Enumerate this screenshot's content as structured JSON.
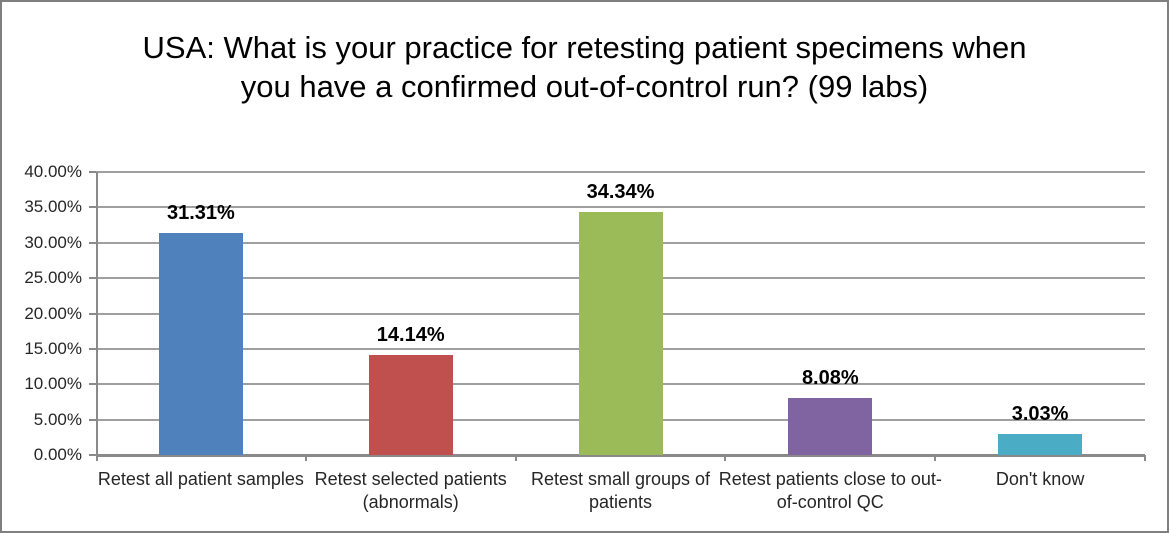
{
  "window": {
    "background": "#ffffff",
    "border_color": "#7f7f7f"
  },
  "chart_data": {
    "type": "bar",
    "title": "USA: What is your practice for retesting patient specimens when you have a confirmed out-of-control run? (99 labs)",
    "categories": [
      "Retest all patient samples",
      "Retest selected patients (abnormals)",
      "Retest small groups of patients",
      "Retest patients close to out-of-control QC",
      "Don't know"
    ],
    "values": [
      31.31,
      14.14,
      34.34,
      8.08,
      3.03
    ],
    "data_labels": [
      "31.31%",
      "14.14%",
      "34.34%",
      "8.08%",
      "3.03%"
    ],
    "bar_colors": [
      "#4F81BD",
      "#C0504D",
      "#9BBB59",
      "#8064A2",
      "#4BACC6"
    ],
    "xlabel": "",
    "ylabel": "",
    "ylim": [
      0,
      40
    ],
    "ytick_step": 5,
    "yticks": [
      {
        "value": 0,
        "label": "0.00%"
      },
      {
        "value": 5,
        "label": "5.00%"
      },
      {
        "value": 10,
        "label": "10.00%"
      },
      {
        "value": 15,
        "label": "15.00%"
      },
      {
        "value": 20,
        "label": "20.00%"
      },
      {
        "value": 25,
        "label": "25.00%"
      },
      {
        "value": 30,
        "label": "30.00%"
      },
      {
        "value": 35,
        "label": "35.00%"
      },
      {
        "value": 40,
        "label": "40.00%"
      }
    ],
    "grid": true,
    "legend": "none",
    "gridline_color": "#9f9f9f",
    "axis_color": "#8a8a8a",
    "text_color": "#262626",
    "data_label_color": "#000000"
  }
}
